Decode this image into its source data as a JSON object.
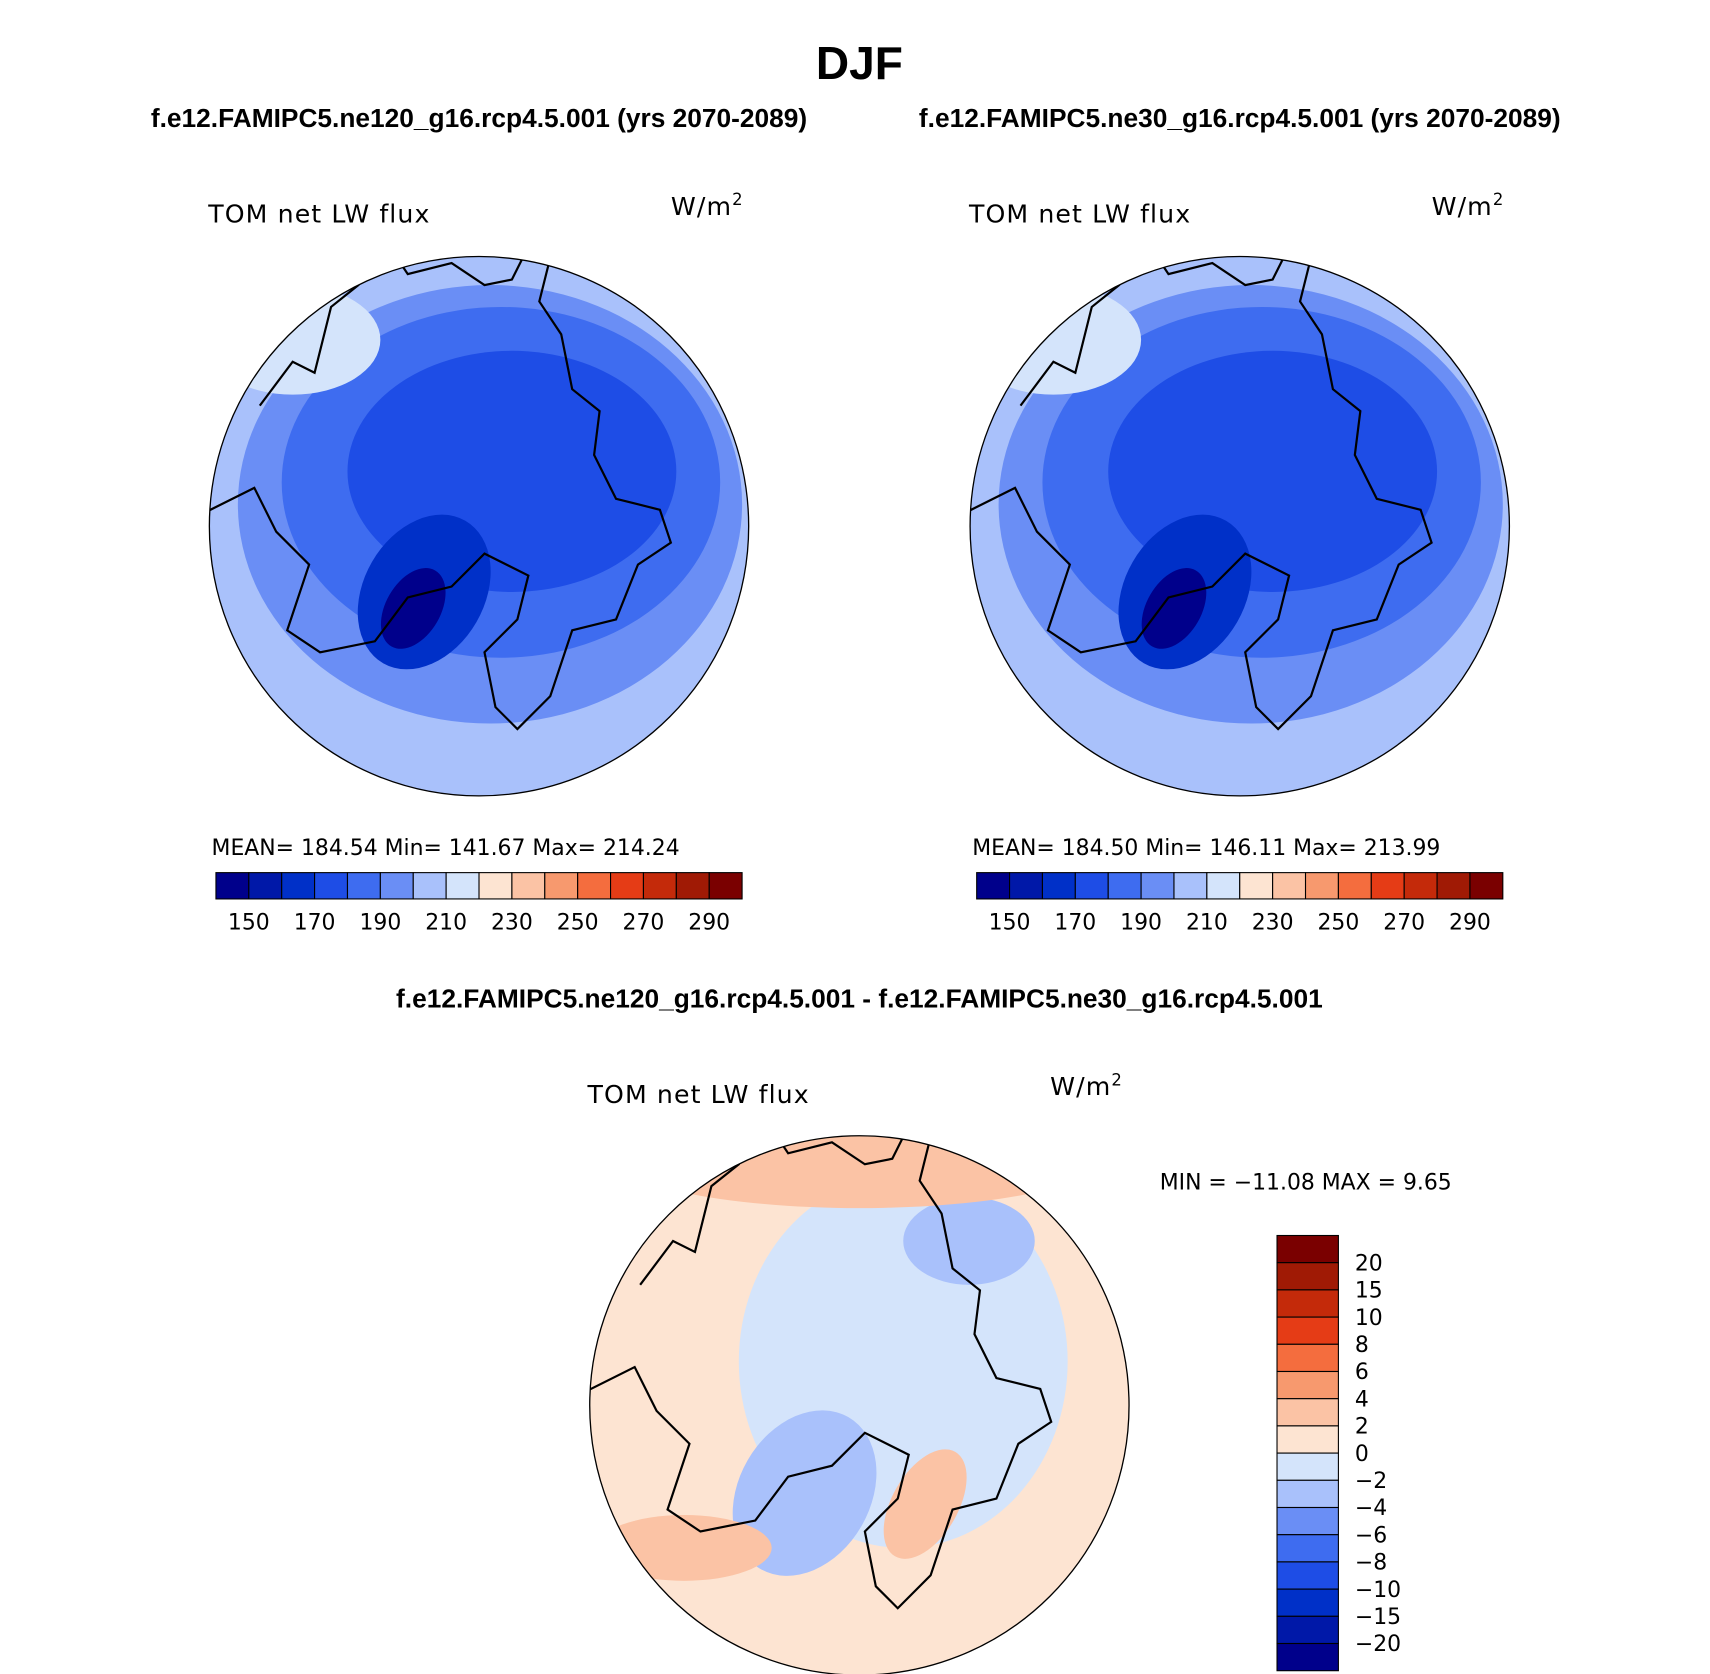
{
  "title": "DJF",
  "panels": [
    {
      "title": "f.e12.FAMIPC5.ne120_g16.rcp4.5.001 (yrs 2070-2089)",
      "field": "TOM net LW flux",
      "units": "W/m",
      "units_sup": "2",
      "stats": "MEAN=  184.54   Min=  141.67   Max=  214.24",
      "colorbar": {
        "colors": [
          "#00008b",
          "#0018a8",
          "#0030c8",
          "#1e4de6",
          "#3e6cf0",
          "#6a8ef5",
          "#a9c1fb",
          "#d4e4fb",
          "#fde4d2",
          "#fbc3a5",
          "#f7996e",
          "#f46d3e",
          "#e53c16",
          "#c42a0a",
          "#a01a05",
          "#7a0000"
        ],
        "labels": [
          "150",
          "170",
          "190",
          "210",
          "230",
          "250",
          "270",
          "290"
        ]
      }
    },
    {
      "title": "f.e12.FAMIPC5.ne30_g16.rcp4.5.001 (yrs 2070-2089)",
      "field": "TOM net LW flux",
      "units": "W/m",
      "units_sup": "2",
      "stats": "MEAN=  184.50   Min=  146.11   Max=  213.99",
      "colorbar": {
        "colors": [
          "#00008b",
          "#0018a8",
          "#0030c8",
          "#1e4de6",
          "#3e6cf0",
          "#6a8ef5",
          "#a9c1fb",
          "#d4e4fb",
          "#fde4d2",
          "#fbc3a5",
          "#f7996e",
          "#f46d3e",
          "#e53c16",
          "#c42a0a",
          "#a01a05",
          "#7a0000"
        ],
        "labels": [
          "150",
          "170",
          "190",
          "210",
          "230",
          "250",
          "270",
          "290"
        ]
      }
    }
  ],
  "diff_panel": {
    "title": "f.e12.FAMIPC5.ne120_g16.rcp4.5.001 - f.e12.FAMIPC5.ne30_g16.rcp4.5.001",
    "field": "TOM net LW flux",
    "units": "W/m",
    "units_sup": "2",
    "stats": "MIN = −11.08 MAX =    9.65",
    "colorbar": {
      "colors": [
        "#7a0000",
        "#a01a05",
        "#c42a0a",
        "#e53c16",
        "#f46d3e",
        "#f7996e",
        "#fbc3a5",
        "#fde4d2",
        "#d4e4fb",
        "#a9c1fb",
        "#6a8ef5",
        "#3e6cf0",
        "#1e4de6",
        "#0030c8",
        "#0018a8",
        "#00008b"
      ],
      "labels": [
        "20",
        "15",
        "10",
        "8",
        "6",
        "4",
        "2",
        "0",
        "−2",
        "−4",
        "−6",
        "−8",
        "−10",
        "−15",
        "−20"
      ]
    }
  }
}
